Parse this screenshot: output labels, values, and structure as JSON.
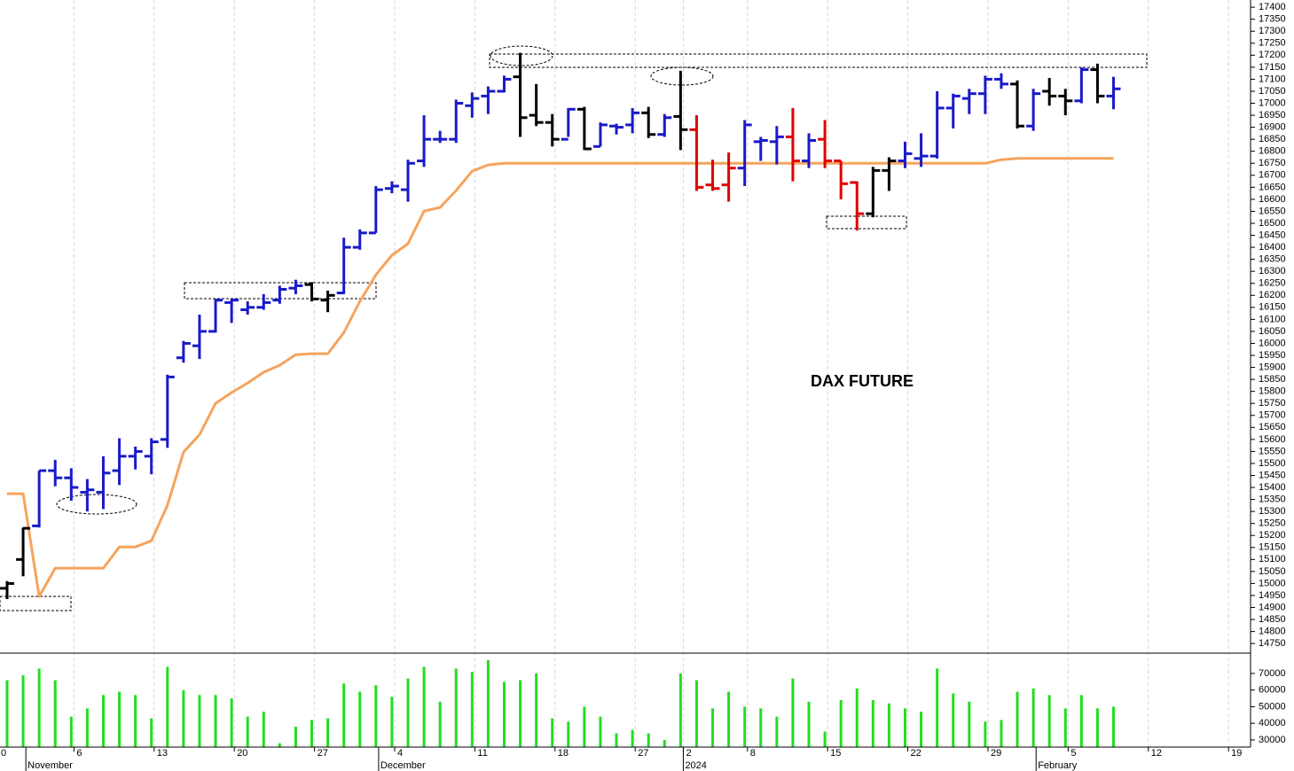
{
  "chart_data": {
    "type": "ohlc",
    "title": "DAX FUTURE",
    "categories": [
      "0",
      null,
      null,
      null,
      null,
      "6",
      null,
      null,
      null,
      null,
      "13",
      null,
      null,
      null,
      null,
      "20",
      null,
      null,
      null,
      null,
      "27",
      null,
      null,
      null,
      null,
      "4",
      null,
      null,
      null,
      null,
      "11",
      null,
      null,
      null,
      null,
      "18",
      null,
      null,
      null,
      null,
      "27",
      null,
      null,
      "2",
      null,
      null,
      null,
      "8",
      null,
      null,
      null,
      null,
      "15",
      null,
      null,
      null,
      null,
      "22",
      null,
      null,
      null,
      null,
      "29",
      null,
      null,
      null,
      null,
      "5",
      null,
      null,
      null,
      null,
      "12",
      null,
      null,
      null,
      null,
      "19"
    ],
    "month_categories": [
      null,
      null,
      "November",
      null,
      null,
      null,
      null,
      null,
      null,
      null,
      null,
      null,
      null,
      null,
      null,
      null,
      null,
      null,
      null,
      null,
      null,
      null,
      null,
      null,
      "December",
      null,
      null,
      null,
      null,
      null,
      null,
      null,
      null,
      null,
      null,
      null,
      null,
      null,
      null,
      null,
      null,
      null,
      null,
      "2024",
      null,
      null,
      null,
      null,
      null,
      null,
      null,
      null,
      null,
      null,
      null,
      null,
      null,
      null,
      null,
      null,
      null,
      null,
      null,
      null,
      null,
      "February",
      null,
      null,
      null,
      null,
      null,
      null,
      null,
      null,
      null,
      null,
      null,
      null
    ],
    "open": [
      14980,
      15100,
      15240,
      15470,
      15440,
      15380,
      15380,
      15470,
      15530,
      15530,
      15600,
      15940,
      15990,
      16050,
      16170,
      16140,
      16150,
      16180,
      16230,
      16245,
      16180,
      16210,
      16400,
      16460,
      16645,
      16640,
      16760,
      16850,
      16850,
      16990,
      17030,
      17050,
      17110,
      16950,
      16920,
      16850,
      16975,
      16820,
      16905,
      16910,
      16960,
      16870,
      16945,
      16890,
      16660,
      16660,
      16730,
      16840,
      16840,
      16860,
      16760,
      16850,
      16760,
      16670,
      16540,
      16720,
      16760,
      16770,
      16780,
      16980,
      17020,
      17040,
      17100,
      17080,
      16905,
      17050,
      17030,
      17010,
      17140,
      17030,
      null,
      null,
      null,
      null,
      null,
      null,
      null,
      null
    ],
    "high": [
      15010,
      15233,
      15470,
      15515,
      15480,
      15435,
      15530,
      15605,
      15570,
      15605,
      15870,
      16010,
      16120,
      16185,
      16185,
      16175,
      16205,
      16240,
      16265,
      16255,
      16220,
      16440,
      16475,
      16655,
      16675,
      16765,
      16950,
      16885,
      17015,
      17045,
      17070,
      17115,
      17210,
      17080,
      16955,
      16980,
      16985,
      16920,
      16915,
      16980,
      16985,
      16955,
      17135,
      16950,
      16765,
      16795,
      16930,
      16860,
      16905,
      16980,
      16875,
      16930,
      16760,
      16675,
      16735,
      16775,
      16840,
      16875,
      17050,
      17040,
      17060,
      17115,
      17125,
      17095,
      17060,
      17105,
      17060,
      17150,
      17165,
      17110,
      null,
      null,
      null,
      null,
      null,
      null,
      null,
      null
    ],
    "low": [
      14935,
      15030,
      15233,
      15405,
      15345,
      15300,
      15310,
      15410,
      15475,
      15455,
      15565,
      15920,
      15935,
      16045,
      16085,
      16120,
      16140,
      16165,
      16205,
      16175,
      16130,
      16205,
      16390,
      16460,
      16625,
      16590,
      16735,
      16835,
      16835,
      16940,
      16955,
      17045,
      16860,
      16905,
      16820,
      16860,
      16805,
      16820,
      16870,
      16875,
      16855,
      16860,
      16805,
      16635,
      16635,
      16590,
      16655,
      16760,
      16745,
      16675,
      16730,
      16730,
      16600,
      16470,
      16525,
      16635,
      16730,
      16735,
      16770,
      16895,
      16955,
      16955,
      17060,
      16895,
      16885,
      16990,
      16950,
      17000,
      17000,
      16975,
      null,
      null,
      null,
      null,
      null,
      null,
      null,
      null
    ],
    "close": [
      15000,
      15230,
      15470,
      15440,
      15400,
      15390,
      15460,
      15530,
      15550,
      15590,
      15860,
      16000,
      16050,
      16180,
      16180,
      16150,
      16170,
      16225,
      16240,
      16185,
      16200,
      16400,
      16460,
      16640,
      16655,
      16750,
      16850,
      16850,
      17000,
      17020,
      17050,
      17100,
      16940,
      16920,
      16850,
      16975,
      16810,
      16910,
      16900,
      16960,
      16870,
      16940,
      16890,
      16650,
      16645,
      16730,
      16910,
      16845,
      16860,
      16760,
      16845,
      16760,
      16665,
      16540,
      16720,
      16760,
      16790,
      16780,
      16980,
      17030,
      17040,
      17100,
      17080,
      16905,
      17040,
      17030,
      17010,
      17140,
      17030,
      17060,
      null,
      null,
      null,
      null,
      null,
      null,
      null,
      null
    ],
    "bar_colors": [
      "#000000",
      "#000000",
      "#1a1ac8",
      "#1a1ac8",
      "#1a1ac8",
      "#1a1ac8",
      "#1a1ac8",
      "#1a1ac8",
      "#1a1ac8",
      "#1a1ac8",
      "#1a1ac8",
      "#1a1ac8",
      "#1a1ac8",
      "#1a1ac8",
      "#1a1ac8",
      "#1a1ac8",
      "#1a1ac8",
      "#1a1ac8",
      "#1a1ac8",
      "#000000",
      "#000000",
      "#1a1ac8",
      "#1a1ac8",
      "#1a1ac8",
      "#1a1ac8",
      "#1a1ac8",
      "#1a1ac8",
      "#1a1ac8",
      "#1a1ac8",
      "#1a1ac8",
      "#1a1ac8",
      "#1a1ac8",
      "#000000",
      "#000000",
      "#000000",
      "#1a1ac8",
      "#000000",
      "#1a1ac8",
      "#1a1ac8",
      "#1a1ac8",
      "#000000",
      "#1a1ac8",
      "#000000",
      "#e00000",
      "#e00000",
      "#e00000",
      "#1a1ac8",
      "#1a1ac8",
      "#1a1ac8",
      "#e00000",
      "#1a1ac8",
      "#e00000",
      "#e00000",
      "#e00000",
      "#000000",
      "#000000",
      "#1a1ac8",
      "#1a1ac8",
      "#1a1ac8",
      "#1a1ac8",
      "#1a1ac8",
      "#1a1ac8",
      "#1a1ac8",
      "#000000",
      "#1a1ac8",
      "#000000",
      "#000000",
      "#1a1ac8",
      "#000000",
      "#1a1ac8",
      null,
      null,
      null,
      null,
      null,
      null,
      null,
      null
    ],
    "line": {
      "color": "#f5a45c",
      "values": [
        15374,
        15374,
        14946,
        15064,
        15064,
        15064,
        15064,
        15152,
        15152,
        15178,
        15326,
        15547,
        15620,
        15750,
        15795,
        15835,
        15880,
        15909,
        15953,
        15957,
        15957,
        16045,
        16175,
        16285,
        16367,
        16415,
        16551,
        16566,
        16636,
        16717,
        16743,
        16750,
        16750,
        16750,
        16750,
        16750,
        16750,
        16750,
        16750,
        16750,
        16750,
        16750,
        16750,
        16750,
        16750,
        16750,
        16750,
        16750,
        16750,
        16750,
        16750,
        16750,
        16750,
        16750,
        16750,
        16750,
        16750,
        16750,
        16750,
        16750,
        16750,
        16750,
        16765,
        16770,
        16770,
        16770,
        16770,
        16770,
        16770,
        16770,
        null,
        null,
        null,
        null,
        null,
        null,
        null,
        null
      ]
    },
    "ylim": [
      14710,
      17430
    ],
    "yticks": [
      14750,
      14800,
      14850,
      14900,
      14950,
      15000,
      15050,
      15100,
      15150,
      15200,
      15250,
      15300,
      15350,
      15400,
      15450,
      15500,
      15550,
      15600,
      15650,
      15700,
      15750,
      15800,
      15850,
      15900,
      15950,
      16000,
      16050,
      16100,
      16150,
      16200,
      16250,
      16300,
      16350,
      16400,
      16450,
      16500,
      16550,
      16600,
      16650,
      16700,
      16750,
      16800,
      16850,
      16900,
      16950,
      17000,
      17050,
      17100,
      17150,
      17200,
      17250,
      17300,
      17350,
      17400
    ],
    "volume": {
      "color": "#22dd22",
      "values": [
        66000,
        69000,
        73000,
        66000,
        44000,
        49000,
        57000,
        59000,
        57000,
        43000,
        74000,
        60000,
        57000,
        57000,
        55000,
        44000,
        47000,
        28000,
        38000,
        42000,
        43000,
        64000,
        59000,
        63000,
        56000,
        67000,
        74000,
        53000,
        73000,
        71000,
        78000,
        65000,
        66000,
        70000,
        43000,
        41000,
        50000,
        44000,
        34000,
        36000,
        34000,
        30000,
        70000,
        66000,
        49000,
        59000,
        50000,
        49000,
        44000,
        67000,
        53000,
        35000,
        54000,
        61000,
        54000,
        52000,
        49000,
        47000,
        73000,
        58000,
        53000,
        41000,
        42000,
        59000,
        61000,
        57000,
        49000,
        57000,
        49000,
        50000,
        null,
        null,
        null,
        null,
        null,
        null,
        null,
        null
      ],
      "ylim": [
        25700,
        81700
      ],
      "yticks": [
        30000,
        40000,
        50000,
        60000,
        70000
      ]
    },
    "grid": true
  }
}
